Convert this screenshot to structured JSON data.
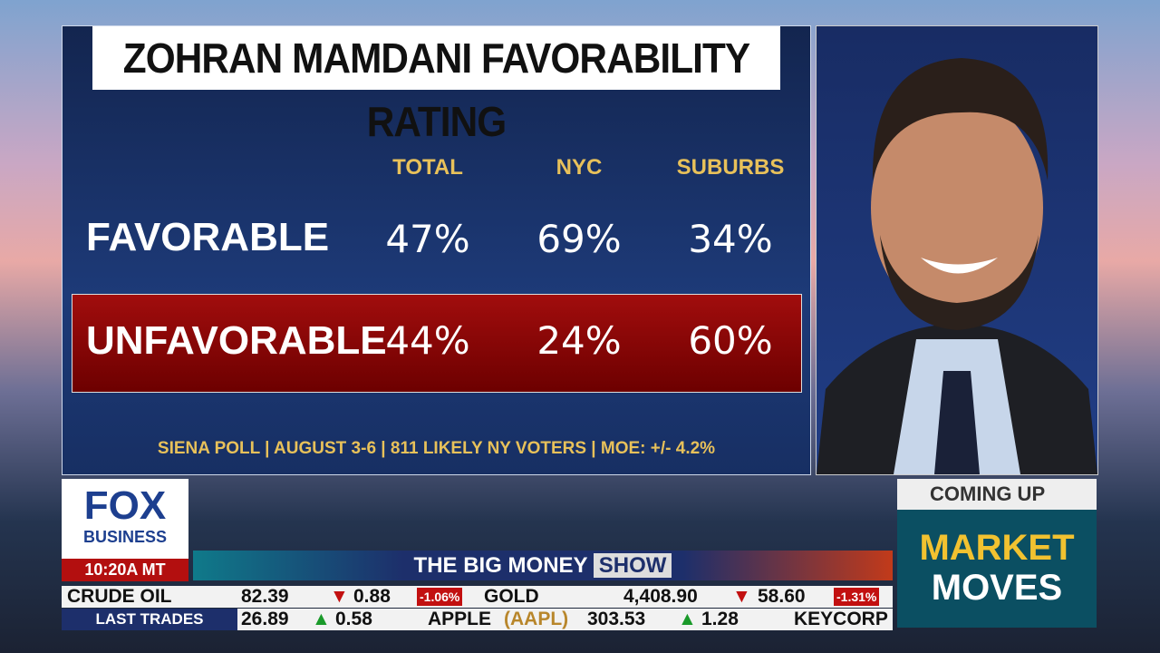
{
  "title": "ZOHRAN MAMDANI FAVORABILITY RATING",
  "table": {
    "columns": [
      "TOTAL",
      "NYC",
      "SUBURBS"
    ],
    "rows": [
      [
        "FAVORABLE",
        "47%",
        "69%",
        "34%"
      ],
      [
        "UNFAVORABLE",
        "44%",
        "24%",
        "60%"
      ]
    ]
  },
  "source": "SIENA POLL | AUGUST 3-6 | 811 LIKELY NY VOTERS | MOE: +/- 4.2%",
  "logo": {
    "line1": "FOX",
    "line2": "BUSINESS"
  },
  "time": "10:20A MT",
  "show": {
    "name": "THE BIG MONEY",
    "suffix": "SHOW"
  },
  "coming_up": {
    "label": "COMING UP",
    "line1": "MARKET",
    "line2": "MOVES"
  },
  "ticker": {
    "row1": [
      "CRUDE OIL",
      "82.39",
      "0.88",
      "-1.06%",
      "GOLD",
      "4,408.90",
      "58.60",
      "-1.31%"
    ],
    "row2": [
      "LAST TRADES",
      "26.89",
      "0.58",
      "APPLE",
      "(AAPL)",
      "303.53",
      "1.28",
      "KEYCORP"
    ]
  }
}
